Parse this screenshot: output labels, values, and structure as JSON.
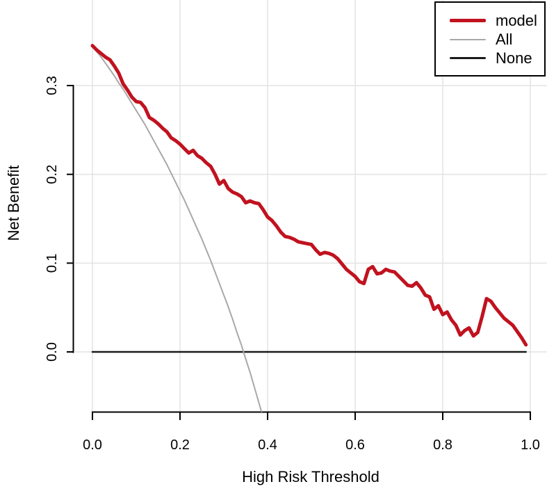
{
  "figure": {
    "background": "#ffffff",
    "axis_color": "#000000",
    "grid_color": "#e4e4e4"
  },
  "legend": {
    "position": "topright",
    "items": [
      {
        "label": "model",
        "color": "#c1121f",
        "line_width": 5
      },
      {
        "label": "All",
        "color": "#a8a8a8",
        "line_width": 2
      },
      {
        "label": "None",
        "color": "#1a1a1a",
        "line_width": 2.5
      }
    ]
  },
  "chart_data": {
    "type": "line",
    "title": "",
    "xlabel": "High Risk Threshold",
    "ylabel": "Net Benefit",
    "xlim": [
      0,
      1.0
    ],
    "ylim": [
      -0.067,
      0.396
    ],
    "x_ticks": [
      0,
      0.2,
      0.4,
      0.6,
      0.8,
      1.0
    ],
    "x_tick_labels": [
      "0.0",
      "0.2",
      "0.4",
      "0.6",
      "0.8",
      "1.0"
    ],
    "y_ticks": [
      0,
      0.1,
      0.2,
      0.3
    ],
    "y_tick_labels": [
      "0.0",
      "0.1",
      "0.2",
      "0.3"
    ],
    "grid": true,
    "legend_position": "topright",
    "series": [
      {
        "name": "None",
        "color": "#1a1a1a",
        "line_width": 2.5,
        "points": [
          [
            0.0,
            0.0
          ],
          [
            0.99,
            0.0
          ]
        ]
      },
      {
        "name": "All",
        "color": "#a8a8a8",
        "line_width": 2,
        "points": [
          [
            0.0,
            0.345
          ],
          [
            0.01,
            0.338
          ],
          [
            0.02,
            0.332
          ],
          [
            0.03,
            0.325
          ],
          [
            0.04,
            0.318
          ],
          [
            0.05,
            0.311
          ],
          [
            0.06,
            0.303
          ],
          [
            0.07,
            0.296
          ],
          [
            0.08,
            0.288
          ],
          [
            0.09,
            0.28
          ],
          [
            0.1,
            0.272
          ],
          [
            0.11,
            0.264
          ],
          [
            0.12,
            0.256
          ],
          [
            0.13,
            0.247
          ],
          [
            0.14,
            0.238
          ],
          [
            0.15,
            0.229
          ],
          [
            0.16,
            0.22
          ],
          [
            0.17,
            0.211
          ],
          [
            0.18,
            0.201
          ],
          [
            0.19,
            0.191
          ],
          [
            0.2,
            0.181
          ],
          [
            0.21,
            0.171
          ],
          [
            0.22,
            0.16
          ],
          [
            0.23,
            0.149
          ],
          [
            0.24,
            0.138
          ],
          [
            0.25,
            0.127
          ],
          [
            0.26,
            0.115
          ],
          [
            0.27,
            0.103
          ],
          [
            0.28,
            0.09
          ],
          [
            0.29,
            0.077
          ],
          [
            0.3,
            0.064
          ],
          [
            0.31,
            0.051
          ],
          [
            0.32,
            0.037
          ],
          [
            0.33,
            0.022
          ],
          [
            0.34,
            0.008
          ],
          [
            0.35,
            -0.008
          ],
          [
            0.36,
            -0.023
          ],
          [
            0.37,
            -0.04
          ],
          [
            0.38,
            -0.057
          ],
          [
            0.39,
            -0.074
          ]
        ]
      },
      {
        "name": "model",
        "color": "#c1121f",
        "line_width": 5,
        "points": [
          [
            0.0,
            0.345
          ],
          [
            0.01,
            0.34
          ],
          [
            0.02,
            0.336
          ],
          [
            0.03,
            0.332
          ],
          [
            0.04,
            0.329
          ],
          [
            0.05,
            0.322
          ],
          [
            0.06,
            0.314
          ],
          [
            0.07,
            0.302
          ],
          [
            0.08,
            0.295
          ],
          [
            0.09,
            0.287
          ],
          [
            0.1,
            0.282
          ],
          [
            0.11,
            0.281
          ],
          [
            0.12,
            0.275
          ],
          [
            0.13,
            0.264
          ],
          [
            0.14,
            0.261
          ],
          [
            0.15,
            0.257
          ],
          [
            0.16,
            0.252
          ],
          [
            0.17,
            0.248
          ],
          [
            0.18,
            0.241
          ],
          [
            0.19,
            0.238
          ],
          [
            0.2,
            0.234
          ],
          [
            0.21,
            0.229
          ],
          [
            0.22,
            0.224
          ],
          [
            0.23,
            0.227
          ],
          [
            0.24,
            0.221
          ],
          [
            0.25,
            0.218
          ],
          [
            0.26,
            0.213
          ],
          [
            0.27,
            0.209
          ],
          [
            0.28,
            0.2
          ],
          [
            0.29,
            0.189
          ],
          [
            0.3,
            0.193
          ],
          [
            0.31,
            0.184
          ],
          [
            0.32,
            0.18
          ],
          [
            0.33,
            0.178
          ],
          [
            0.34,
            0.175
          ],
          [
            0.35,
            0.168
          ],
          [
            0.36,
            0.17
          ],
          [
            0.37,
            0.168
          ],
          [
            0.38,
            0.167
          ],
          [
            0.39,
            0.16
          ],
          [
            0.4,
            0.152
          ],
          [
            0.41,
            0.148
          ],
          [
            0.42,
            0.142
          ],
          [
            0.43,
            0.135
          ],
          [
            0.44,
            0.13
          ],
          [
            0.45,
            0.129
          ],
          [
            0.46,
            0.127
          ],
          [
            0.47,
            0.124
          ],
          [
            0.48,
            0.123
          ],
          [
            0.49,
            0.122
          ],
          [
            0.5,
            0.121
          ],
          [
            0.51,
            0.115
          ],
          [
            0.52,
            0.11
          ],
          [
            0.53,
            0.112
          ],
          [
            0.54,
            0.111
          ],
          [
            0.55,
            0.109
          ],
          [
            0.56,
            0.105
          ],
          [
            0.57,
            0.099
          ],
          [
            0.58,
            0.093
          ],
          [
            0.59,
            0.089
          ],
          [
            0.6,
            0.085
          ],
          [
            0.61,
            0.079
          ],
          [
            0.62,
            0.077
          ],
          [
            0.63,
            0.093
          ],
          [
            0.64,
            0.096
          ],
          [
            0.65,
            0.088
          ],
          [
            0.66,
            0.089
          ],
          [
            0.67,
            0.093
          ],
          [
            0.68,
            0.091
          ],
          [
            0.69,
            0.09
          ],
          [
            0.7,
            0.085
          ],
          [
            0.71,
            0.08
          ],
          [
            0.72,
            0.075
          ],
          [
            0.73,
            0.074
          ],
          [
            0.74,
            0.078
          ],
          [
            0.75,
            0.072
          ],
          [
            0.76,
            0.064
          ],
          [
            0.77,
            0.062
          ],
          [
            0.78,
            0.048
          ],
          [
            0.79,
            0.052
          ],
          [
            0.8,
            0.042
          ],
          [
            0.81,
            0.045
          ],
          [
            0.82,
            0.036
          ],
          [
            0.83,
            0.03
          ],
          [
            0.84,
            0.019
          ],
          [
            0.85,
            0.024
          ],
          [
            0.86,
            0.027
          ],
          [
            0.87,
            0.018
          ],
          [
            0.88,
            0.022
          ],
          [
            0.89,
            0.04
          ],
          [
            0.9,
            0.06
          ],
          [
            0.91,
            0.057
          ],
          [
            0.92,
            0.05
          ],
          [
            0.93,
            0.044
          ],
          [
            0.94,
            0.038
          ],
          [
            0.95,
            0.034
          ],
          [
            0.96,
            0.03
          ],
          [
            0.97,
            0.023
          ],
          [
            0.98,
            0.016
          ],
          [
            0.99,
            0.008
          ]
        ]
      }
    ]
  }
}
